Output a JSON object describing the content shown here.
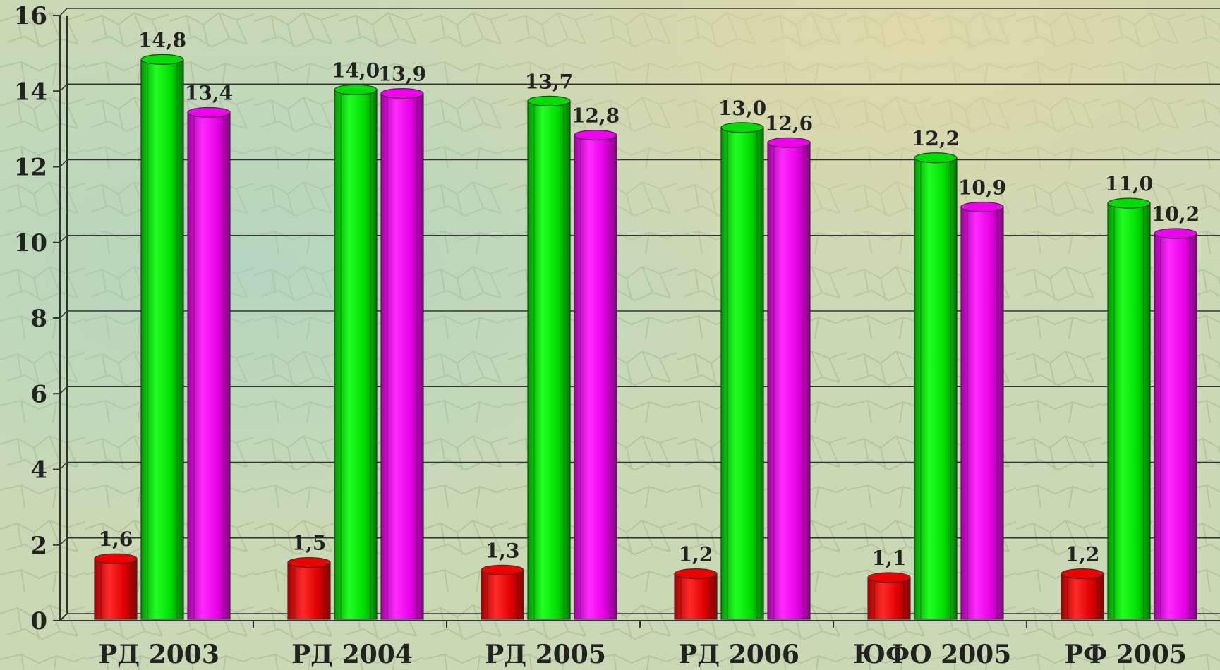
{
  "chart_data": {
    "type": "bar",
    "categories": [
      "РД 2003",
      "РД 2004",
      "РД 2005",
      "РД 2006",
      "ЮФО 2005",
      "РФ 2005"
    ],
    "series": [
      {
        "values": [
          1.6,
          1.5,
          1.3,
          1.2,
          1.1,
          1.2
        ],
        "labels": [
          "1,6",
          "1,5",
          "1,3",
          "1,2",
          "1,1",
          "1,2"
        ],
        "color": "#ee0000"
      },
      {
        "values": [
          14.8,
          14.0,
          13.7,
          13.0,
          12.2,
          11.0
        ],
        "labels": [
          "14,8",
          "14,0",
          "13,7",
          "13,0",
          "12,2",
          "11,0"
        ],
        "color": "#00dd00"
      },
      {
        "values": [
          13.4,
          13.9,
          12.8,
          12.6,
          10.9,
          10.2
        ],
        "labels": [
          "13,4",
          "13,9",
          "12,8",
          "12,6",
          "10,9",
          "10,2"
        ],
        "color": "#ee00ee"
      }
    ],
    "yticks": [
      "0",
      "2",
      "4",
      "6",
      "8",
      "10",
      "12",
      "14",
      "16"
    ],
    "ylim": [
      0,
      16
    ],
    "grid": true,
    "title": "",
    "xlabel": "",
    "ylabel": ""
  }
}
